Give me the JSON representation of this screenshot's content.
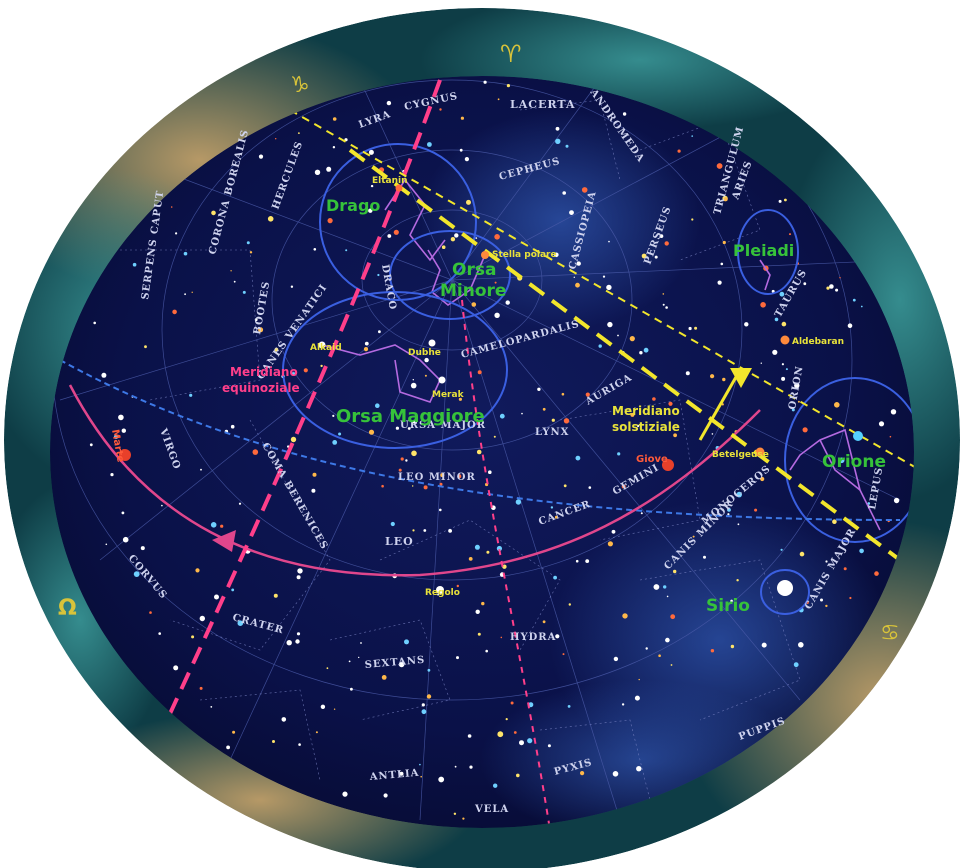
{
  "zodiac": {
    "capricorn": "♑",
    "aries": "♈",
    "leo": "Ω",
    "cancer": "♋"
  },
  "labels": {
    "draco": "Drago",
    "ursa_minor_1": "Orsa",
    "ursa_minor_2": "Minore",
    "ursa_major": "Orsa Maggiore",
    "pleiades": "Pleiadi",
    "orion": "Orione",
    "sirius": "Sirio",
    "equinox_meridian_1": "Meridiano",
    "equinox_meridian_2": "equinoziale",
    "solstice_meridian_1": "Meridiano",
    "solstice_meridian_2": "solstiziale",
    "polaris": "Stella polare",
    "eltanin": "Eltanin",
    "alkaid": "Alkaid",
    "dubhe": "Dubhe",
    "merak": "Merak",
    "aldebaran": "Aldebaran",
    "betelgeuse": "Betelgeuse",
    "regulus": "Regolo",
    "jupiter": "Giove",
    "mars": "Marte"
  },
  "constellations": {
    "cygnus": "CYGNUS",
    "lyra": "LYRA",
    "lacerta": "LACERTA",
    "andromeda": "ANDROMEDA",
    "cepheus": "CEPHEUS",
    "cassiopeia": "CASSIOPEIA",
    "triangulum": "TRIANGULUM",
    "aries": "ARIES",
    "perseus": "PERSEUS",
    "taurus": "TAURUS",
    "hercules": "HERCULES",
    "corona_borealis": "CORONA BOREALIS",
    "serpens_caput": "SERPENS CAPUT",
    "bootes": "BOOTES",
    "draco": "DRACO",
    "camelopardalis": "CAMELOPARDALIS",
    "canes_venatici": "CANES VENATICI",
    "ursa_major": "URSA MAJOR",
    "auriga": "AURIGA",
    "lynx": "LYNX",
    "orion": "ORION",
    "lepus": "LEPUS",
    "virgo": "VIRGO",
    "coma_berenices": "COMA BERENICES",
    "leo_minor": "LEO MINOR",
    "gemini": "GEMINI",
    "cancer": "CANCER",
    "monoceros": "MONOCEROS",
    "leo": "LEO",
    "canis_minor": "CANIS MINOR",
    "canis_major": "CANIS MAJOR",
    "corvus": "CORVUS",
    "crater": "CRATER",
    "sextans": "SEXTANS",
    "hydra": "HYDRA",
    "puppis": "PUPPIS",
    "antlia": "ANTLIA",
    "pyxis": "PYXIS",
    "vela": "VELA"
  },
  "colors": {
    "sky": "#0a1044",
    "ring": "#0f4a52",
    "green_label": "#36c23a",
    "yellow_label": "#e8e23a",
    "pink_label": "#ff3f8a",
    "ecliptic": "#e0468c",
    "dashed_yellow": "#f2e62c"
  }
}
